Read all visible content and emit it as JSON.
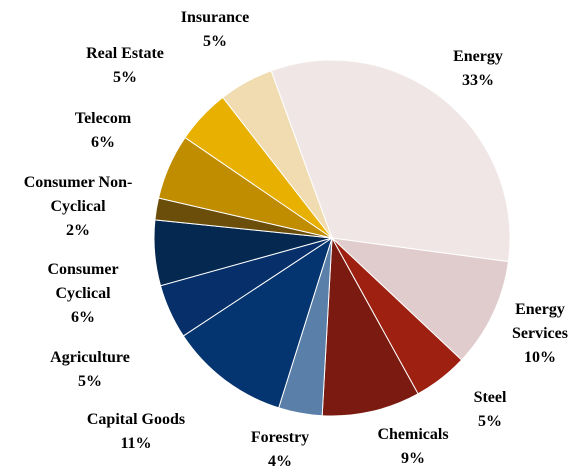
{
  "chart_data": {
    "type": "pie",
    "categories": [
      "Energy",
      "Energy Services",
      "Steel",
      "Chemicals",
      "Forestry",
      "Capital Goods",
      "Agriculture",
      "Consumer Cyclical",
      "Consumer Non-Cyclical",
      "Telecom",
      "Real Estate",
      "Insurance"
    ],
    "values": [
      33,
      10,
      5,
      9,
      4,
      11,
      5,
      6,
      2,
      6,
      5,
      5
    ],
    "value_labels": [
      "33%",
      "10%",
      "5%",
      "9%",
      "4%",
      "11%",
      "5%",
      "6%",
      "2%",
      "6%",
      "5%",
      "5%"
    ],
    "colors": [
      "#f0e6e6",
      "#e0cccc",
      "#9e2010",
      "#7a1a10",
      "#5a7fa8",
      "#053570",
      "#07306a",
      "#052850",
      "#6b4e0a",
      "#c08c00",
      "#e8b000",
      "#f0dcb0"
    ]
  }
}
